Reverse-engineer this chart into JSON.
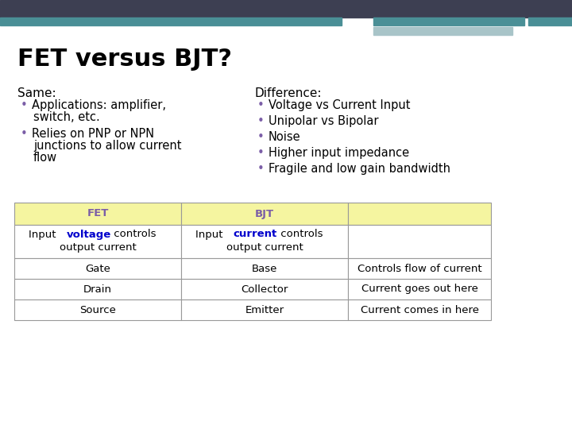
{
  "title": "FET versus BJT?",
  "title_fontsize": 22,
  "bg_color": "#ffffff",
  "top_bar_color": "#3d3f52",
  "top_teal_color": "#4a8f96",
  "top_light_color": "#a8c4c8",
  "same_header": "Same:",
  "same_bullets": [
    [
      "Applications: amplifier,",
      "switch, etc."
    ],
    [
      "Relies on PNP or NPN",
      "junctions to allow current",
      "flow"
    ]
  ],
  "diff_header": "Difference:",
  "diff_bullets": [
    "Voltage vs Current Input",
    "Unipolar vs Bipolar",
    "Noise",
    "Higher input impedance",
    "Fragile and low gain bandwidth"
  ],
  "bullet_color": "#7b5ea7",
  "table_header_bg": "#f5f5a0",
  "table_border_color": "#999999",
  "table_header_color": "#7b5ea7",
  "voltage_color": "#0000cc",
  "current_color": "#0000cc",
  "text_color": "#000000",
  "body_fontsize": 10.5,
  "table_fontsize": 9.5,
  "header_fontsize": 11
}
